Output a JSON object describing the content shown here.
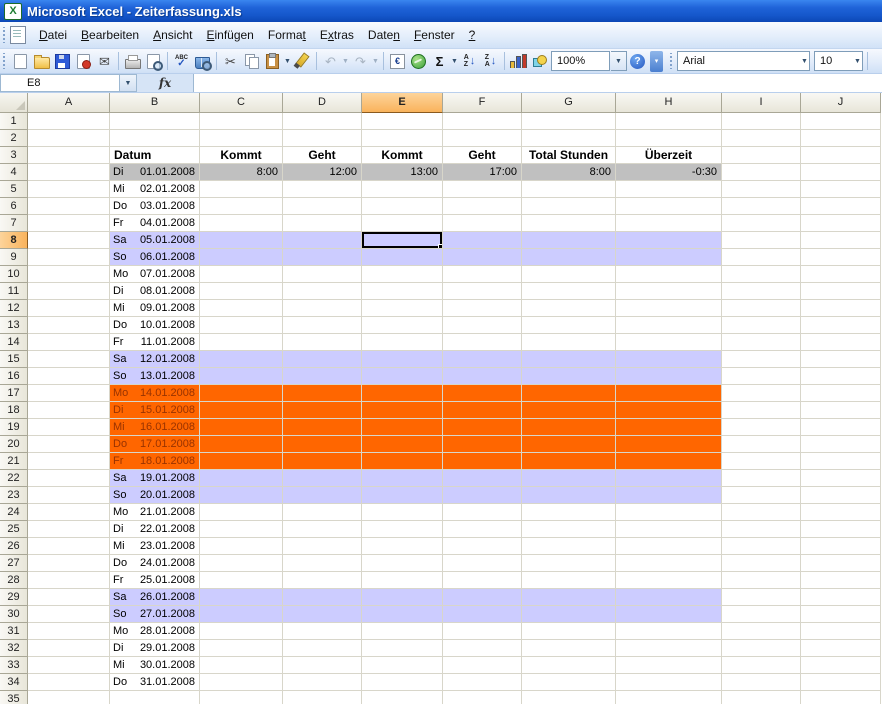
{
  "window": {
    "title": "Microsoft Excel - Zeiterfassung.xls"
  },
  "menubar": {
    "items": [
      {
        "label": "Datei",
        "u": 0
      },
      {
        "label": "Bearbeiten",
        "u": 0
      },
      {
        "label": "Ansicht",
        "u": 0
      },
      {
        "label": "Einfügen",
        "u": 0
      },
      {
        "label": "Format",
        "u": 5
      },
      {
        "label": "Extras",
        "u": 1
      },
      {
        "label": "Daten",
        "u": 4
      },
      {
        "label": "Fenster",
        "u": 0
      },
      {
        "label": "?",
        "u": 0
      }
    ]
  },
  "toolbar": {
    "zoom": "100%",
    "font_name": "Arial",
    "font_size": "10",
    "glyphs": {
      "spelling_abc": "ABC",
      "spelling_check": "✓",
      "cut": "✂",
      "undo": "↶",
      "redo": "↷",
      "euro": "€",
      "autosum": "Σ",
      "sort_a": "A",
      "sort_z": "Z",
      "sort_arrow": "↓",
      "mail": "✉",
      "help": "?",
      "dropdown": "▼",
      "overflow_chevron": "▾"
    }
  },
  "formula_bar": {
    "name_box": "E8",
    "fx_label": "fx",
    "formula": ""
  },
  "grid": {
    "columns": [
      "A",
      "B",
      "C",
      "D",
      "E",
      "F",
      "G",
      "H",
      "I",
      "J"
    ],
    "row_count": 35,
    "selected_cell": "E8",
    "selected_column": "E",
    "selected_row": 8,
    "header_row": {
      "row": 3,
      "datum_label": "Datum",
      "labels": [
        "Kommt",
        "Geht",
        "Kommt",
        "Geht",
        "Total Stunden",
        "Überzeit"
      ]
    },
    "data_rows": [
      {
        "row": 4,
        "weekday": "Di",
        "date": "01.01.2008",
        "style": "summary",
        "values": [
          "8:00",
          "12:00",
          "13:00",
          "17:00",
          "8:00",
          "-0:30"
        ]
      },
      {
        "row": 5,
        "weekday": "Mi",
        "date": "02.01.2008",
        "style": "plain"
      },
      {
        "row": 6,
        "weekday": "Do",
        "date": "03.01.2008",
        "style": "plain"
      },
      {
        "row": 7,
        "weekday": "Fr",
        "date": "04.01.2008",
        "style": "plain"
      },
      {
        "row": 8,
        "weekday": "Sa",
        "date": "05.01.2008",
        "style": "weekend"
      },
      {
        "row": 9,
        "weekday": "So",
        "date": "06.01.2008",
        "style": "weekend"
      },
      {
        "row": 10,
        "weekday": "Mo",
        "date": "07.01.2008",
        "style": "plain"
      },
      {
        "row": 11,
        "weekday": "Di",
        "date": "08.01.2008",
        "style": "plain"
      },
      {
        "row": 12,
        "weekday": "Mi",
        "date": "09.01.2008",
        "style": "plain"
      },
      {
        "row": 13,
        "weekday": "Do",
        "date": "10.01.2008",
        "style": "plain"
      },
      {
        "row": 14,
        "weekday": "Fr",
        "date": "11.01.2008",
        "style": "plain"
      },
      {
        "row": 15,
        "weekday": "Sa",
        "date": "12.01.2008",
        "style": "weekend"
      },
      {
        "row": 16,
        "weekday": "So",
        "date": "13.01.2008",
        "style": "weekend"
      },
      {
        "row": 17,
        "weekday": "Mo",
        "date": "14.01.2008",
        "style": "focus"
      },
      {
        "row": 18,
        "weekday": "Di",
        "date": "15.01.2008",
        "style": "focus"
      },
      {
        "row": 19,
        "weekday": "Mi",
        "date": "16.01.2008",
        "style": "focus"
      },
      {
        "row": 20,
        "weekday": "Do",
        "date": "17.01.2008",
        "style": "focus"
      },
      {
        "row": 21,
        "weekday": "Fr",
        "date": "18.01.2008",
        "style": "focus"
      },
      {
        "row": 22,
        "weekday": "Sa",
        "date": "19.01.2008",
        "style": "weekend"
      },
      {
        "row": 23,
        "weekday": "So",
        "date": "20.01.2008",
        "style": "weekend"
      },
      {
        "row": 24,
        "weekday": "Mo",
        "date": "21.01.2008",
        "style": "plain"
      },
      {
        "row": 25,
        "weekday": "Di",
        "date": "22.01.2008",
        "style": "plain"
      },
      {
        "row": 26,
        "weekday": "Mi",
        "date": "23.01.2008",
        "style": "plain"
      },
      {
        "row": 27,
        "weekday": "Do",
        "date": "24.01.2008",
        "style": "plain"
      },
      {
        "row": 28,
        "weekday": "Fr",
        "date": "25.01.2008",
        "style": "plain"
      },
      {
        "row": 29,
        "weekday": "Sa",
        "date": "26.01.2008",
        "style": "weekend"
      },
      {
        "row": 30,
        "weekday": "So",
        "date": "27.01.2008",
        "style": "weekend"
      },
      {
        "row": 31,
        "weekday": "Mo",
        "date": "28.01.2008",
        "style": "plain"
      },
      {
        "row": 32,
        "weekday": "Di",
        "date": "29.01.2008",
        "style": "plain"
      },
      {
        "row": 33,
        "weekday": "Mi",
        "date": "30.01.2008",
        "style": "plain"
      },
      {
        "row": 34,
        "weekday": "Do",
        "date": "31.01.2008",
        "style": "plain"
      }
    ]
  },
  "colors": {
    "weekend_fill": "#ccccff",
    "focus_fill": "#ff6600",
    "focus_text": "#993300",
    "summary_fill": "#c0c0c0",
    "selected_header_fill": "#f9b35c",
    "titlebar_blue": "#1f63d8"
  }
}
